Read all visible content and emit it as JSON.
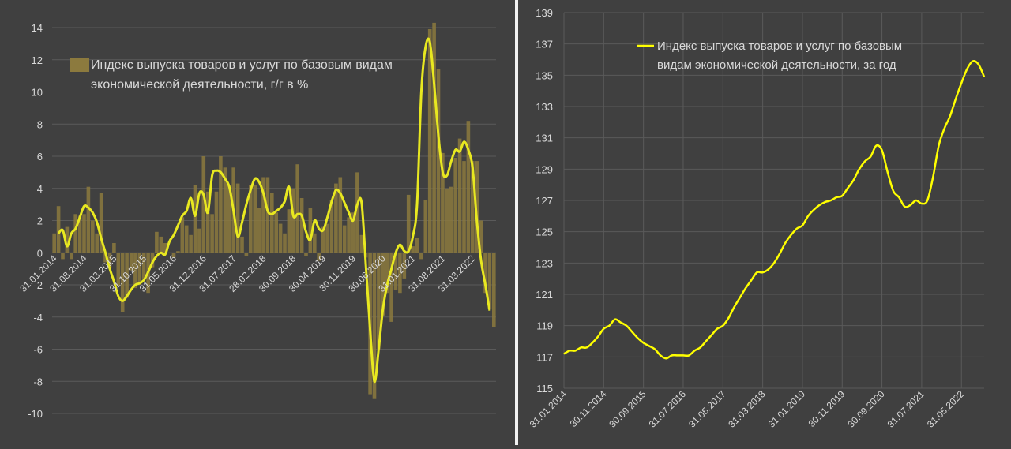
{
  "chart_data": [
    {
      "type": "bar",
      "ylim": [
        -10,
        14
      ],
      "yticks": [
        -10,
        -8,
        -6,
        -4,
        -2,
        0,
        2,
        4,
        6,
        8,
        10,
        12,
        14
      ],
      "xtick_labels": [
        "31.01.2014",
        "31.08.2014",
        "31.03.2015",
        "31.10.2015",
        "31.05.2016",
        "31.12.2016",
        "31.07.2017",
        "28.02.2018",
        "30.09.2018",
        "30.04.2019",
        "30.11.2019",
        "30.06.2020",
        "31.01.2021",
        "31.08.2021",
        "31.03.2022"
      ],
      "legend_line1": "Индекс выпуска товаров и услуг по базовым видам",
      "legend_line2": "экономической деятельности, г/г в %",
      "colors": {
        "bar": "#8c7a3e",
        "line": "#e8e820",
        "text": "#d9d9d9",
        "grid": "#5a5a5a"
      },
      "series": [
        {
          "name": "Индекс выпуска товаров и услуг по базовым видам экономической деятельности, г/г в %",
          "values": [
            1.2,
            2.9,
            -0.4,
            1.6,
            -0.4,
            2.4,
            2.3,
            2.4,
            4.1,
            2.0,
            1.2,
            3.7,
            -0.6,
            -0.9,
            0.6,
            -2.1,
            -3.7,
            -2.8,
            -1.1,
            -2.2,
            -2.0,
            -1.6,
            -2.5,
            -0.9,
            1.3,
            1.0,
            0.6,
            0.0,
            -0.3,
            0.1,
            2.2,
            1.7,
            1.1,
            4.2,
            1.5,
            6.0,
            3.8,
            2.4,
            3.8,
            6.0,
            5.3,
            4.2,
            5.3,
            4.3,
            1.0,
            -0.2,
            4.2,
            4.2,
            2.8,
            4.7,
            4.7,
            3.7,
            2.5,
            1.8,
            1.2,
            2.7,
            4.0,
            5.5,
            3.4,
            -0.2,
            2.8,
            1.2,
            -0.5,
            1.6,
            1.8,
            3.3,
            4.3,
            4.7,
            1.7,
            2.2,
            2.5,
            5.0,
            1.1,
            -0.3,
            -8.8,
            -9.1,
            -6.0,
            -3.9,
            -2.5,
            -4.3,
            -2.3,
            -2.5,
            -1.6,
            3.6,
            0.4,
            0.9,
            -0.4,
            3.3,
            13.9,
            14.3,
            11.4,
            6.2,
            4.0,
            4.1,
            5.9,
            7.1,
            5.7,
            8.2,
            5.7,
            5.7,
            2.0,
            -2.5,
            -3.5,
            -4.6
          ],
          "smoothed": [
            1.2,
            1.4,
            0.4,
            1.2,
            1.5,
            2.2,
            2.9,
            2.8,
            2.5,
            1.9,
            0.9,
            0.0,
            -1.0,
            -1.8,
            -2.7,
            -3.0,
            -2.7,
            -2.3,
            -2.0,
            -1.9,
            -1.7,
            -1.2,
            -0.6,
            -0.2,
            0.0,
            -0.1,
            0.7,
            1.1,
            1.7,
            2.3,
            2.6,
            3.4,
            2.3,
            3.7,
            3.6,
            2.5,
            4.8,
            5.1,
            5.0,
            4.6,
            4.1,
            2.6,
            1.0,
            1.9,
            3.0,
            3.9,
            4.6,
            4.4,
            3.7,
            2.6,
            2.4,
            2.6,
            2.8,
            3.2,
            4.1,
            2.3,
            2.4,
            2.3,
            1.3,
            0.8,
            2.0,
            1.5,
            1.4,
            2.2,
            3.2,
            3.9,
            3.7,
            3.1,
            2.5,
            2.0,
            3.0,
            3.1,
            -0.8,
            -4.8,
            -8.0,
            -6.0,
            -3.5,
            -2.0,
            -1.0,
            0.0,
            0.5,
            0.1,
            0.1,
            1.0,
            3.0,
            10.0,
            12.8,
            13.1,
            10.5,
            7.3,
            5.0,
            4.8,
            5.7,
            6.4,
            6.3,
            6.9,
            6.4,
            5.3,
            2.0,
            -0.5,
            -2.0,
            -3.6
          ]
        }
      ]
    },
    {
      "type": "line",
      "ylim": [
        115,
        139
      ],
      "yticks": [
        115,
        117,
        119,
        121,
        123,
        125,
        127,
        129,
        131,
        133,
        135,
        137,
        139
      ],
      "xtick_labels": [
        "31.01.2014",
        "30.11.2014",
        "30.09.2015",
        "31.07.2016",
        "31.05.2017",
        "31.03.2018",
        "31.01.2019",
        "30.11.2019",
        "30.09.2020",
        "31.07.2021",
        "31.05.2022"
      ],
      "legend_line1": "Индекс выпуска товаров и услуг по базовым",
      "legend_line2": "видам экономической деятельности, за год",
      "colors": {
        "line": "#ffff00",
        "text": "#d9d9d9",
        "grid": "#5a5a5a"
      },
      "series": [
        {
          "name": "Индекс выпуска товаров и услуг по базовым видам экономической деятельности, за год",
          "values": [
            117.2,
            117.4,
            117.4,
            117.6,
            117.6,
            117.9,
            118.3,
            118.8,
            119.0,
            119.4,
            119.2,
            119.0,
            118.6,
            118.2,
            117.9,
            117.7,
            117.5,
            117.1,
            116.9,
            117.1,
            117.1,
            117.1,
            117.1,
            117.4,
            117.6,
            118.0,
            118.4,
            118.8,
            119.0,
            119.5,
            120.2,
            120.8,
            121.4,
            121.9,
            122.4,
            122.4,
            122.6,
            123.0,
            123.6,
            124.3,
            124.8,
            125.2,
            125.4,
            126.0,
            126.4,
            126.7,
            126.9,
            127.0,
            127.2,
            127.3,
            127.8,
            128.3,
            129.0,
            129.5,
            129.8,
            130.5,
            130.2,
            128.8,
            127.6,
            127.2,
            126.6,
            126.7,
            127.0,
            126.8,
            127.0,
            128.5,
            130.5,
            131.6,
            132.4,
            133.5,
            134.5,
            135.4,
            135.9,
            135.7,
            134.9
          ]
        }
      ]
    }
  ]
}
